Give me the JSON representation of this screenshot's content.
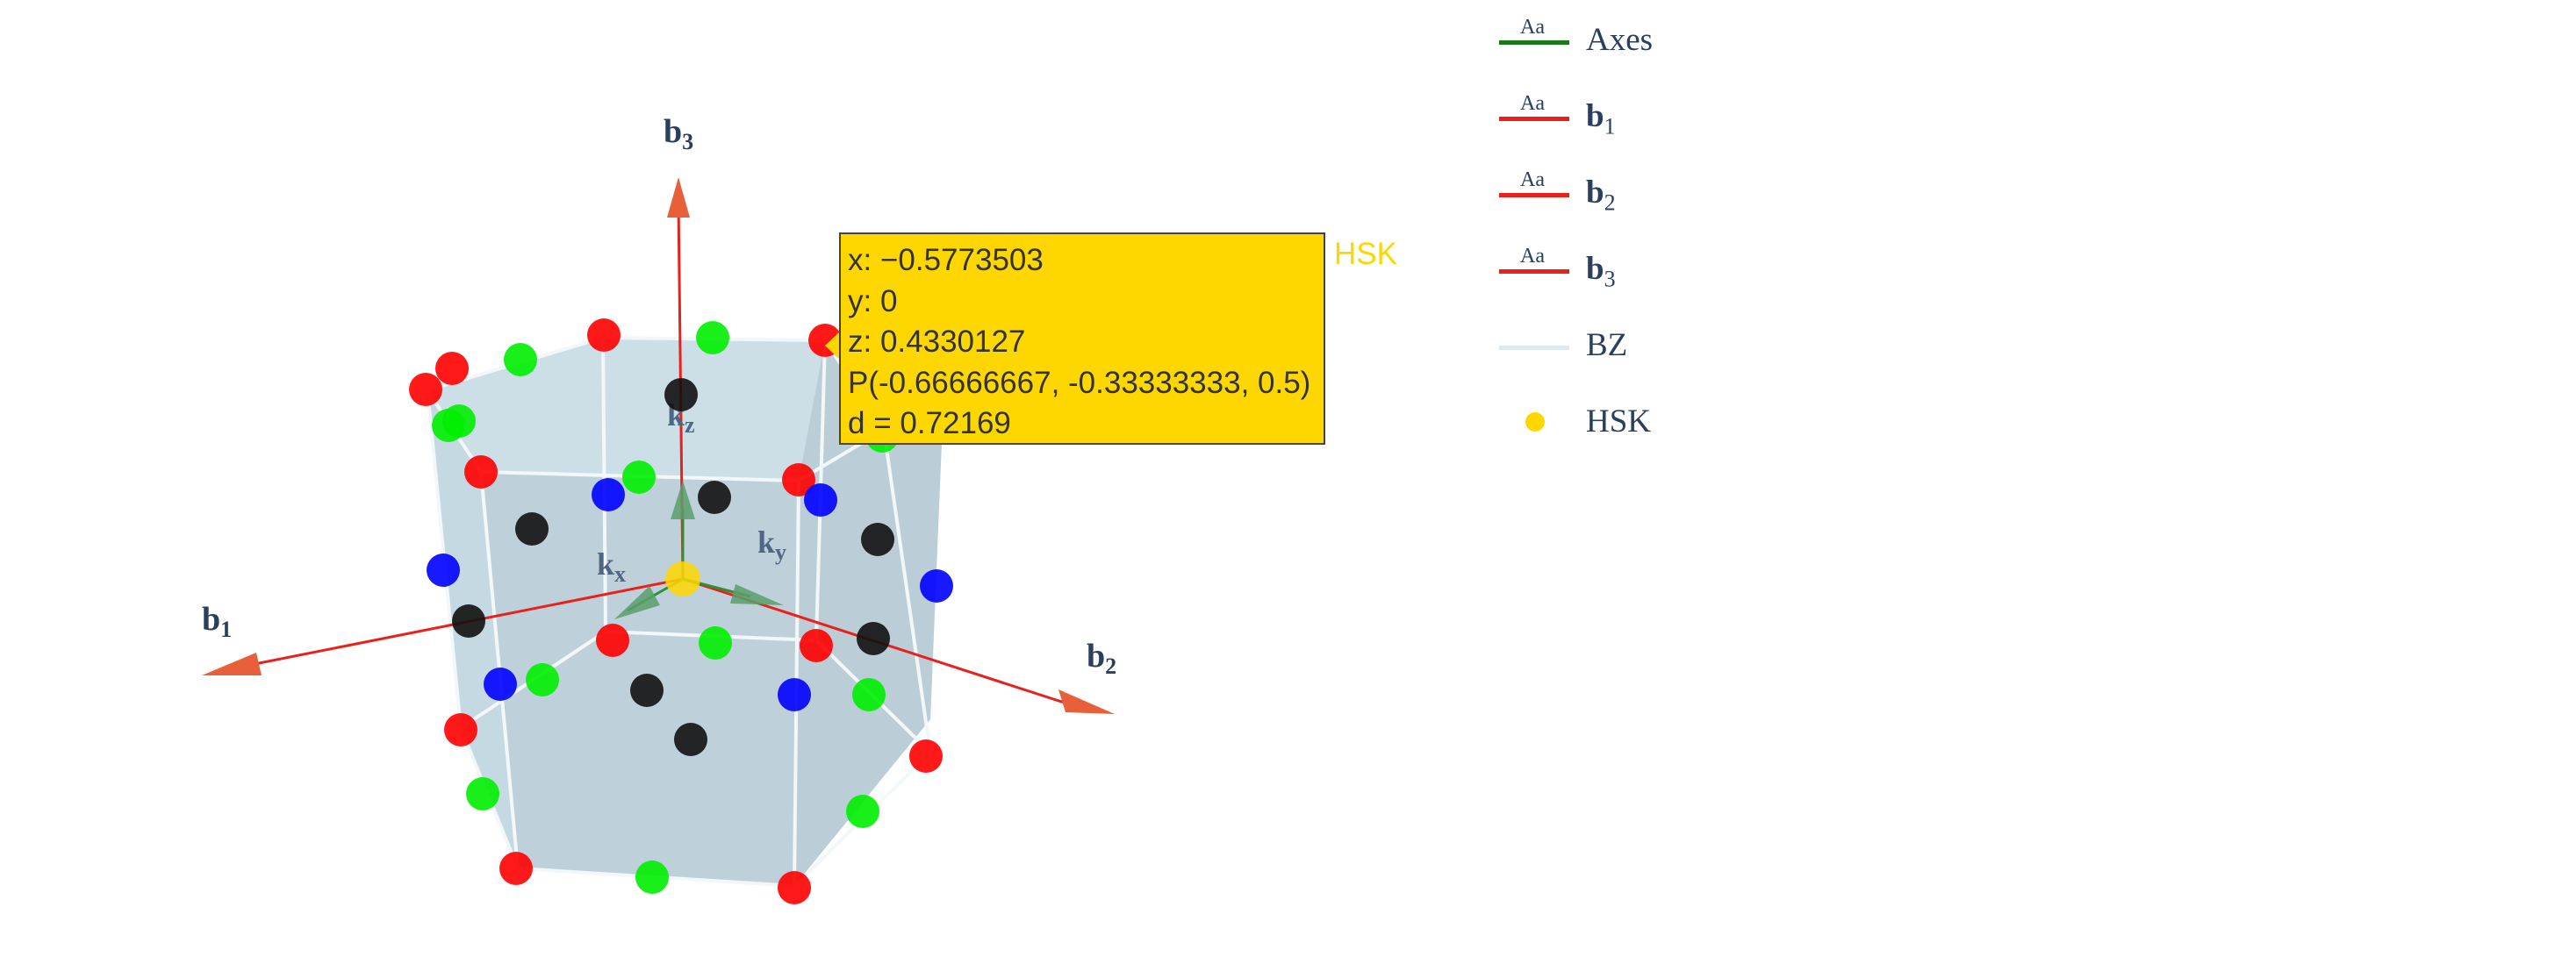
{
  "chart_data": {
    "type": "scatter3d",
    "axes": {
      "b1": {
        "main": "b",
        "sub": "1",
        "color": "#e8462a"
      },
      "b2": {
        "main": "b",
        "sub": "2",
        "color": "#e8462a"
      },
      "b3": {
        "main": "b",
        "sub": "3",
        "color": "#e8462a"
      }
    },
    "cartesian_axes": {
      "kx": {
        "main": "k",
        "sub": "x"
      },
      "ky": {
        "main": "k",
        "sub": "y"
      },
      "kz": {
        "main": "k",
        "sub": "z"
      }
    },
    "brillouin_zone": {
      "shape": "hexagonal prism",
      "color": "#a8c4d2"
    },
    "point_groups": [
      {
        "color": "#ff0000",
        "count": 12
      },
      {
        "color": "#00ee00",
        "count": 12
      },
      {
        "color": "#0000ff",
        "count": 6
      },
      {
        "color": "#111111",
        "count": 8
      },
      {
        "color": "#ffd700",
        "count": 1
      }
    ],
    "hover": {
      "trace": "HSK",
      "lines": [
        "x: −0.5773503",
        "y: 0",
        "z: 0.4330127",
        "P(-0.66666667, -0.33333333, 0.5)",
        "d = 0.72169"
      ]
    },
    "legend": [
      {
        "name": "Axes",
        "color": "#1a7a1a",
        "marker": "line",
        "bold": false
      },
      {
        "name": "b",
        "sub": "1",
        "color": "#e8211d",
        "marker": "line",
        "bold": true
      },
      {
        "name": "b",
        "sub": "2",
        "color": "#e8211d",
        "marker": "line",
        "bold": true
      },
      {
        "name": "b",
        "sub": "3",
        "color": "#e8211d",
        "marker": "line",
        "bold": true
      },
      {
        "name": "BZ",
        "color": "#dde8ef",
        "marker": "line",
        "bold": false
      },
      {
        "name": "HSK",
        "color": "#ffd700",
        "marker": "dot",
        "bold": false
      }
    ],
    "legend_swatch_text": "Aa",
    "legend_position": "top-right"
  }
}
